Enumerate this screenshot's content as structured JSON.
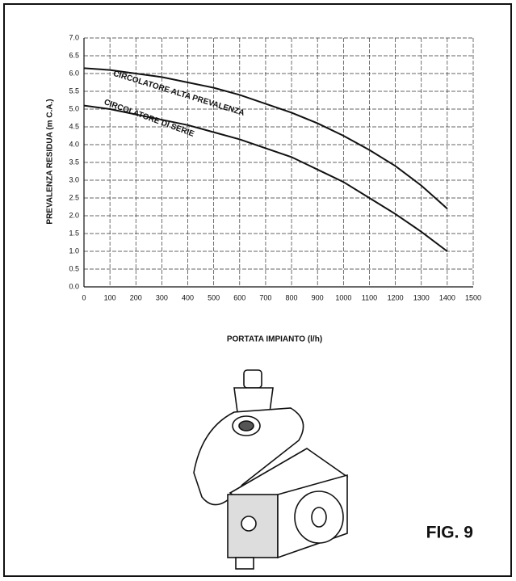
{
  "chart_data": {
    "type": "line",
    "xlabel": "PORTATA IMPIANTO (l/h)",
    "ylabel": "PREVALENZA RESIDUA (m C.A.)",
    "x": [
      0,
      100,
      200,
      300,
      400,
      500,
      600,
      700,
      800,
      900,
      1000,
      1100,
      1200,
      1300,
      1400
    ],
    "series": [
      {
        "name": "CIRCOLATORE ALTA PREVALENZA",
        "color": "#111111",
        "values": [
          6.15,
          6.1,
          6.0,
          5.9,
          5.75,
          5.6,
          5.4,
          5.15,
          4.9,
          4.6,
          4.25,
          3.85,
          3.4,
          2.85,
          2.2
        ]
      },
      {
        "name": "CIRCOLATORE DI SERIE",
        "color": "#111111",
        "values": [
          5.1,
          5.0,
          4.85,
          4.7,
          4.55,
          4.35,
          4.15,
          3.9,
          3.65,
          3.3,
          2.95,
          2.5,
          2.05,
          1.55,
          1.0
        ]
      }
    ],
    "xlim": [
      0,
      1500
    ],
    "xticks": [
      0,
      100,
      200,
      300,
      400,
      500,
      600,
      700,
      800,
      900,
      1000,
      1100,
      1200,
      1300,
      1400,
      1500
    ],
    "ylim": [
      0,
      7
    ],
    "yticks": [
      {
        "value": 0,
        "label": "0.0"
      },
      0.5,
      {
        "value": 1,
        "label": "1.0"
      },
      1.5,
      {
        "value": 2,
        "label": "2.0"
      },
      2.5,
      {
        "value": 3,
        "label": "3.0"
      },
      3.5,
      {
        "value": 4,
        "label": "4.0"
      },
      4.5,
      {
        "value": 5,
        "label": "5.0"
      },
      5.5,
      {
        "value": 6,
        "label": "6.0"
      },
      6.5,
      {
        "value": 7,
        "label": "7.0"
      }
    ],
    "grid": true,
    "figure_label": "FIG. 9"
  }
}
